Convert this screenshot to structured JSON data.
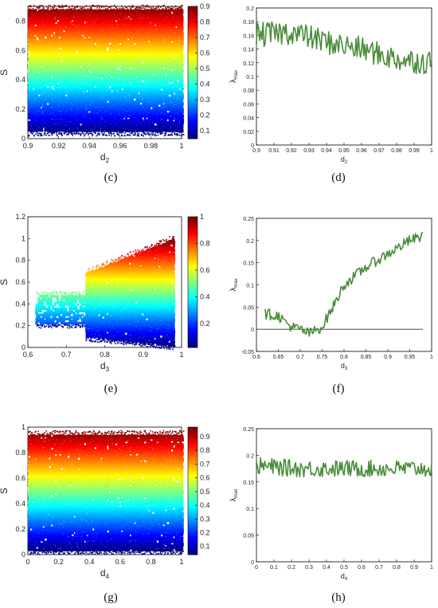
{
  "panel_labels": {
    "c": "(c)",
    "d": "(d)",
    "e": "(e)",
    "f": "(f)",
    "g": "(g)",
    "h": "(h)"
  },
  "chart_data": [
    {
      "id": "c",
      "type": "scatter",
      "xlabel": "d",
      "xlabel_sub": "2",
      "ylabel": "S",
      "xlim": [
        0.9,
        1.0
      ],
      "ylim": [
        0,
        0.9
      ],
      "xticks": [
        "0.9",
        "0.92",
        "0.94",
        "0.96",
        "0.98",
        "1"
      ],
      "yticks": [
        "0",
        "0.2",
        "0.4",
        "0.6",
        "0.8"
      ],
      "colorbar": {
        "range": [
          0.05,
          0.9
        ],
        "ticks": [
          "0.1",
          "0.2",
          "0.3",
          "0.4",
          "0.5",
          "0.6",
          "0.7",
          "0.8",
          "0.9"
        ]
      },
      "band": {
        "lower": 0.05,
        "upper": 0.88
      }
    },
    {
      "id": "d",
      "type": "line",
      "xlabel": "d",
      "xlabel_sub": "2",
      "ylabel": "λ",
      "ylabel_sub": "max",
      "xlim": [
        0.9,
        1.0
      ],
      "ylim": [
        0,
        0.2
      ],
      "xticks": [
        "0.9",
        "0.91",
        "0.92",
        "0.93",
        "0.94",
        "0.95",
        "0.96",
        "0.97",
        "0.98",
        "0.99",
        "1"
      ],
      "yticks": [
        "0",
        "0.02",
        "0.04",
        "0.06",
        "0.08",
        "0.1",
        "0.12",
        "0.14",
        "0.16",
        "0.18",
        "0.2"
      ],
      "color": "#4a8c3a",
      "trend": {
        "x": [
          0.9,
          0.92,
          0.94,
          0.96,
          0.98,
          1.0
        ],
        "y": [
          0.16,
          0.165,
          0.15,
          0.14,
          0.125,
          0.12
        ]
      }
    },
    {
      "id": "e",
      "type": "scatter",
      "xlabel": "d",
      "xlabel_sub": "3",
      "ylabel": "S",
      "xlim": [
        0.6,
        1.0
      ],
      "ylim": [
        0,
        1.2
      ],
      "xticks": [
        "0.6",
        "0.7",
        "0.8",
        "0.9",
        "1"
      ],
      "yticks": [
        "0",
        "0.2",
        "0.4",
        "0.6",
        "0.8",
        "1",
        "1.2"
      ],
      "colorbar": {
        "range": [
          0.02,
          1.0
        ],
        "ticks": [
          "0.2",
          "0.4",
          "0.6",
          "0.8",
          "1"
        ]
      },
      "region1": {
        "x": [
          0.62,
          0.75
        ],
        "lower": 0.22,
        "upper": 0.48
      },
      "region2": {
        "x": [
          0.75,
          0.98
        ],
        "lower_start": 0.1,
        "lower_end": 0.02,
        "upper_start": 0.68,
        "upper_end": 1.0
      }
    },
    {
      "id": "f",
      "type": "line",
      "xlabel": "d",
      "xlabel_sub": "3",
      "ylabel": "λ",
      "ylabel_sub": "max",
      "xlim": [
        0.6,
        1.0
      ],
      "ylim": [
        -0.05,
        0.25
      ],
      "xticks": [
        "0.6",
        "0.65",
        "0.7",
        "0.75",
        "0.8",
        "0.85",
        "0.9",
        "0.95",
        "1"
      ],
      "yticks": [
        "-0.05",
        "0",
        "0.05",
        "0.1",
        "0.15",
        "0.2",
        "0.25"
      ],
      "color": "#4a8c3a",
      "zero_line": true,
      "trend": {
        "x": [
          0.62,
          0.65,
          0.68,
          0.7,
          0.72,
          0.75,
          0.78,
          0.8,
          0.85,
          0.9,
          0.95,
          0.98
        ],
        "y": [
          0.035,
          0.03,
          0.005,
          0.0,
          -0.01,
          0.005,
          0.06,
          0.1,
          0.14,
          0.17,
          0.2,
          0.21
        ]
      }
    },
    {
      "id": "g",
      "type": "scatter",
      "xlabel": "d",
      "xlabel_sub": "4",
      "ylabel": "S",
      "xlim": [
        0,
        1
      ],
      "ylim": [
        0,
        1
      ],
      "xticks": [
        "0",
        "0.2",
        "0.4",
        "0.6",
        "0.8",
        "1"
      ],
      "yticks": [
        "0",
        "0.2",
        "0.4",
        "0.6",
        "0.8",
        "1"
      ],
      "colorbar": {
        "range": [
          0.04,
          0.97
        ],
        "ticks": [
          "0.1",
          "0.2",
          "0.3",
          "0.4",
          "0.5",
          "0.6",
          "0.7",
          "0.8",
          "0.9"
        ]
      },
      "band": {
        "lower": 0.04,
        "upper": 0.94
      }
    },
    {
      "id": "h",
      "type": "line",
      "xlabel": "d",
      "xlabel_sub": "4",
      "ylabel": "λ",
      "ylabel_sub": "max",
      "xlim": [
        0,
        1
      ],
      "ylim": [
        0,
        0.25
      ],
      "xticks": [
        "0",
        "0.1",
        "0.2",
        "0.3",
        "0.4",
        "0.5",
        "0.6",
        "0.7",
        "0.8",
        "0.9",
        "1"
      ],
      "yticks": [
        "0",
        "0.05",
        "0.1",
        "0.15",
        "0.2",
        "0.25"
      ],
      "color": "#4a8c3a",
      "trend": {
        "x": [
          0,
          0.25,
          0.5,
          0.75,
          1.0
        ],
        "y": [
          0.18,
          0.175,
          0.175,
          0.175,
          0.175
        ]
      }
    }
  ]
}
